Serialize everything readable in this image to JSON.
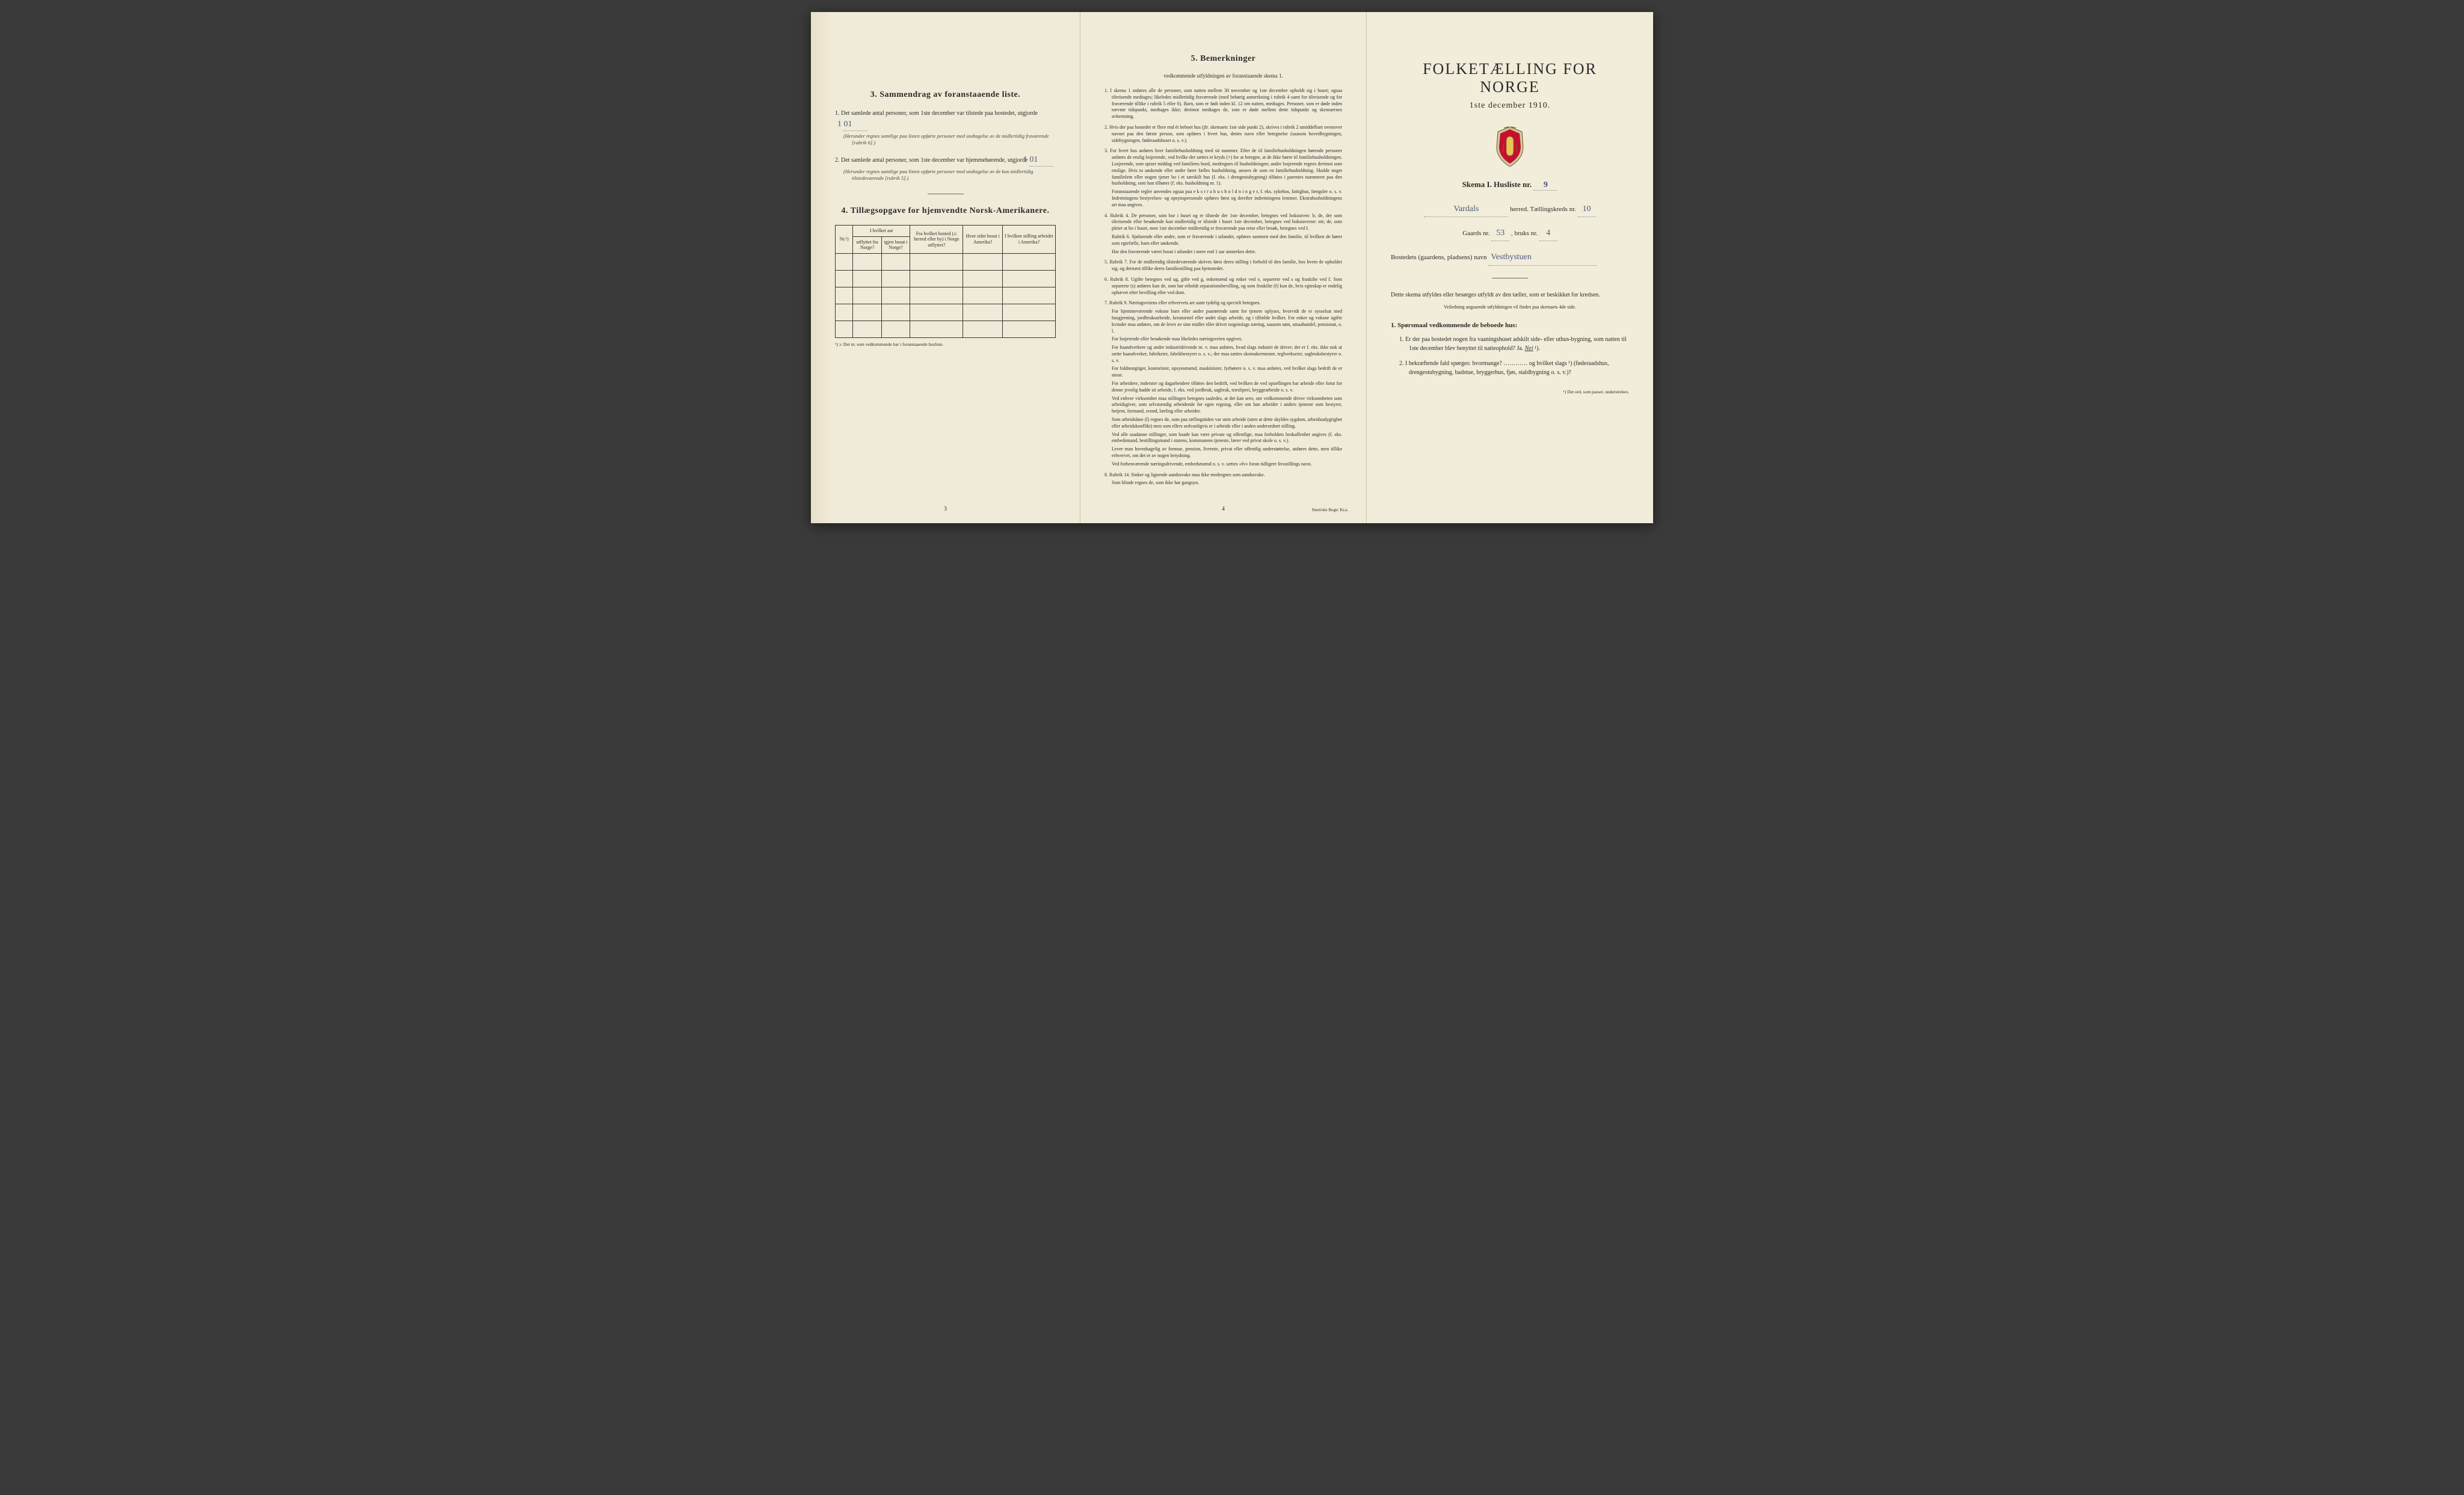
{
  "page1": {
    "sec3_title": "3.   Sammendrag av foranstaaende liste.",
    "item1_pre": "1.  Det samlede antal personer, som 1ste december var tilstede paa bostedet, utgjorde",
    "item1_fill": "1    01",
    "item1_paren": "(Herunder regnes samtlige paa listen opførte personer med undtagelse av de midlertidig fraværende [rubrik 6].)",
    "item2_pre": "2.  Det samlede antal personer, som 1ste december var hjemmehørende, utgjorde",
    "item2_fill": "1    01",
    "item2_paren": "(Herunder regnes samtlige paa listen opførte personer med undtagelse av de kun midlertidig tilstedeværende [rubrik 5].)",
    "sec4_title": "4.   Tillægsopgave for hjemvendte Norsk-Amerikanere.",
    "table": {
      "h_nr": "Nr.¹)",
      "h_aar": "I hvilket aar",
      "h_ut": "utflyttet fra Norge?",
      "h_igjen": "igjen bosat i Norge?",
      "h_bosted": "Fra hvilket bosted (ɔ: herred eller by) i Norge utflyttet?",
      "h_sidst": "Hvor sidst bosat i Amerika?",
      "h_stilling": "I hvilken stilling arbeidet i Amerika?"
    },
    "tbl_foot": "¹) ɔ: Det nr. som vedkommende har i foranstaaende husliste.",
    "pageno": "3"
  },
  "page2": {
    "title": "5.   Bemerkninger",
    "subtitle": "vedkommende utfyldningen av foranstaaende skema 1.",
    "items": [
      "1.  I skema 1 anføres alle de personer, som natten mellem 30 november og 1ste december opholdt sig i huset; ogsaa tilreisende medtages; likeledes midlertidig fraværende (med behørig anmerkning i rubrik 4 samt for tilreisende og for fraværende tillike i rubrik 5 eller 6). Barn, som er født inden kl. 12 om natten, medtages. Personer, som er døde inden nævnte tidspunkt, medtages ikke; derimot medtages de, som er døde mellem dette tidspunkt og skemaernes avhentning.",
      "2.  Hvis der paa bostedet er flere end ét beboet hus (jfr. skemaets 1ste side punkt 2), skrives i rubrik 2 umiddelbart ovenover navnet paa den første person, som opføres i hvert hus, dettes navn eller betegnelse (saasom hovedbygningen, sidebygningen, føderaadshuset o. s. v.).",
      "3.  For hvert hus anføres hver familiehusholdning med sit nummer. Efter de til familiehusholdningen hørende personer anføres de enslig losjerende, ved hvilke der sættes et kryds (×) for at betegne, at de ikke hører til familiehusholdningen. Losjerende, som spiser middag ved familiens bord, medregnes til husholdningen; andre losjerende regnes derimot som enslige. Hvis to søskende eller andre fører fælles husholdning, ansees de som en familiehusholdning. Skulde noget familielem eller nogen tjener bo i et særskilt hus (f. eks. i drengestubygning) tilføies i parentes nummeret paa den husholdning, som han tilhører (f. eks. husholdning nr. 1).\n     Foranstaaende regler anvendes ogsaa paa e k s t r a h u s h o l d n i n g e r, f. eks. sykehus, fattighus, fængsler o. s. v.  Indretningens bestyrelses- og opsynspersonale opføres først og derefter indretningens lemmer.  Ekstrahusholdningens art maa angives.",
      "4.  Rubrik 4.  De personer, som bor i huset og er tilstede der 1ste december, betegnes ved bokstaven: b; de, der som tilreisende eller besøkende kun midlertidig er tilstede i huset 1ste december, betegnes ved bokstaverne: mt; de, som pleier at bo i huset, men 1ste december midlertidig er fraværende paa reise eller besøk, betegnes ved f.\n     Rubrik 6.  Sjøfarende eller andre, som er fraværende i utlandet, opføres sammen med den familie, til hvilken de hører som egtefælle, barn eller søskende.\n     Har den fraværende været bosat i utlandet i mere end 1 aar anmerkes dette.",
      "5.  Rubrik 7.  For de midlertidig tilstedeværende skrives først deres stilling i forhold til den familie, hos hvem de opholder sig, og dernæst tillike deres familiestilling paa hjemstedet.",
      "6.  Rubrik 8.  Ugifte betegnes ved ug, gifte ved g, enkemænd og enker ved e, separerte ved s og fraskilte ved f. Som separerte (s) anføres kun de, som har erholdt separationsbevilling, og som fraskilte (f) kun de, hvis egteskap er endelig ophævet efter bevilling eller ved dom.",
      "7.  Rubrik 9.  Næringsveiens eller erhvervets art samt tydelig og specielt betegnes.\n     For hjemmeværende voksne barn eller andre paarørende samt for tjenere oplyses, hvorvidt de er sysselsat med husgjerning, jordbruksarbeide, kreaturstel eller andet slags arbeide, og i tilfælde hvilket. For enker og voksne ugifte kvinder maa anføres, om de lever av sine midler eller driver nogenslags næring, saasom søm, smaahandel, pensionat, o. l.\n     For losjerende eller besøkende maa likeledes næringsveien opgives.\n     For haandverkere og andre industridrivende m. v. maa anføres, hvad slags industri de driver; det er f. eks. ikke nok at sætte haandverker, fabrikeier, fabrikbestyrer o. s. v.; der maa sættes skomakermester, teglverkseier, sagbruksbestyrer o. s. v.\n     For fuldmægtiger, kontorister, opsynsmænd, maskinister, fyrbøtere o. s. v. maa anføres, ved hvilket slags bedrift de er ansat.\n     For arbeidere, inderster og dagarbeidere tilføies den bedrift, ved hvilken de ved optællingen har arbeide eller forut for denne jevnlig hadde sit arbeide, f. eks. ved jordbruk, sagbruk, træsliperi, bryggearbeide o. s. v.\n     Ved enhver virksomhet maa stillingen betegnes saaledes, at det kan sees, om vedkommende driver virksomheten som arbeidsgiver, som selvstændig arbeidende for egen regning, eller om han arbeider i andres tjeneste som bestyrer, betjent, formand, svend, lærling eller arbeider.\n     Som arbeidsløse (l) regnes de, som paa tællingstiden var uten arbeide (uten at dette skyldes sygdom, arbeidsudygtighet eller arbeidskonflikt) men som ellers sedvanligvis er i arbeide eller i anden underordnet stilling.\n     Ved alle saadanne stillinger, som baade kan være private og offentlige, maa forholdets beskaffenhet angives (f. eks. embedsmand, bestillingsmand i statens, kommunens tjeneste, lærer ved privat skole o. s. v.).\n     Lever man hovedsagelig av formue, pension, livrente, privat eller offentlig understøttelse, anføres dette, men tillike erhvervet, om det er av nogen betydning.\n     Ved forhenværende næringsdrivende, embedsmænd o. s. v. sættes «fv» foran tidligere livsstillings navn.",
      "8.  Rubrik 14.  Sinker og lignende aandssvake maa ikke medregnes som aandssvake.\n     Som blinde regnes de, som ikke har gangsyn."
    ],
    "pageno": "4",
    "printer": "Steen'ske Bogtr.  Kr.a."
  },
  "page3": {
    "title": "FOLKETÆLLING FOR NORGE",
    "date": "1ste december 1910.",
    "skema": "Skema I.   Husliste nr.",
    "skema_fill": "9",
    "herred_fill": "Vardals",
    "herred_lbl": "herred.   Tællingskreds nr.",
    "kreds_fill": "10",
    "gaards_lbl": "Gaards nr.",
    "gaards_fill": "53",
    "bruks_lbl": ", bruks nr.",
    "bruks_fill": "4",
    "bosted_lbl": "Bostedets (gaardens, pladsens) navn",
    "bosted_fill": "Vestbystuen",
    "descr": "Dette skema utfyldes eller besørges utfyldt av den tæller, som er beskikket for kredsen.",
    "descr_sub": "Veiledning angaaende utfyldningen vil findes paa skemaets 4de side.",
    "q_head": "1.  Spørsmaal vedkommende de beboede hus:",
    "q1": "1.  Er der paa bostedet nogen fra vaaningshuset adskilt side- eller uthus-bygning, som natten til 1ste december blev benyttet til natteophold?    Ja.   ",
    "q1_nei": "Nei",
    "q1_sup": " ¹).",
    "q2": "2.  I bekræftende fald spørges:  hvormange? ………… og hvilket slags ¹) (føderaadshus, drengestubygning, badstue, bryggerhus, fjøs, staldbygning o. s. v.)?",
    "foot": "¹) Det ord, som passer, understrekes."
  }
}
